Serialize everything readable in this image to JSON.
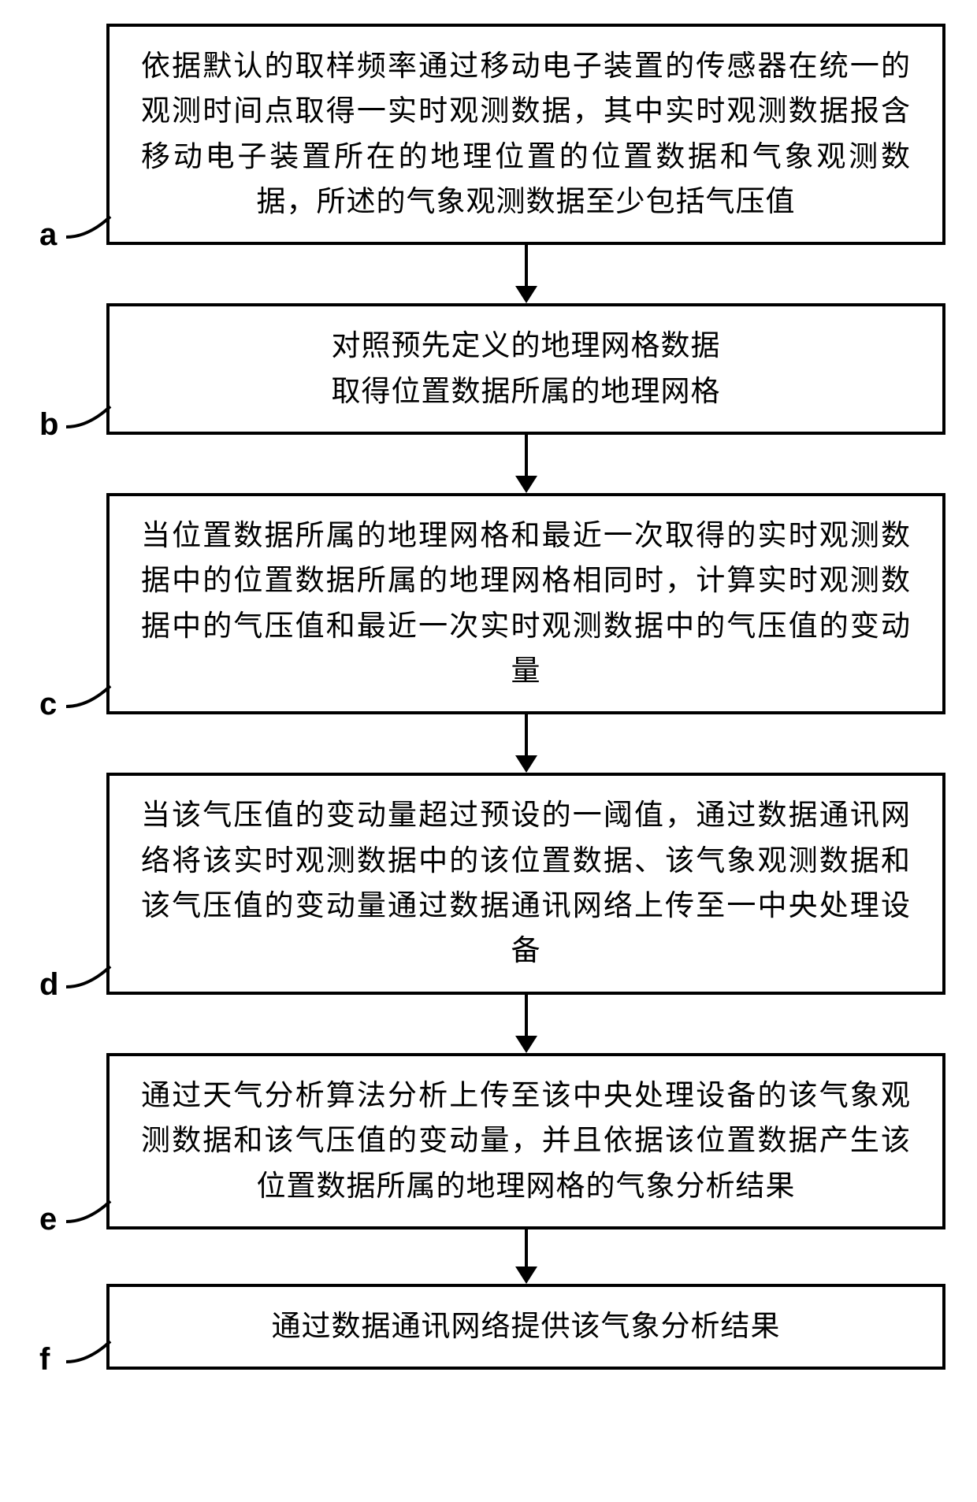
{
  "flowchart": {
    "type": "flowchart",
    "background_color": "#ffffff",
    "border_color": "#000000",
    "border_width": 4,
    "text_color": "#000000",
    "font_size": 37,
    "label_font_size": 40,
    "arrow_color": "#000000",
    "steps": [
      {
        "id": "a",
        "text": "依据默认的取样频率通过移动电子装置的传感器在统一的观测时间点取得一实时观测数据，其中实时观测数据报含移动电子装置所在的地理位置的位置数据和气象观测数据，所述的气象观测数据至少包括气压值",
        "arrow_height": 75,
        "narrow": false
      },
      {
        "id": "b",
        "text": "对照预先定义的地理网格数据\n取得位置数据所属的地理网格",
        "arrow_height": 75,
        "narrow": true
      },
      {
        "id": "c",
        "text": "当位置数据所属的地理网格和最近一次取得的实时观测数据中的位置数据所属的地理网格相同时，计算实时观测数据中的气压值和最近一次实时观测数据中的气压值的变动量",
        "arrow_height": 75,
        "narrow": false
      },
      {
        "id": "d",
        "text": "当该气压值的变动量超过预设的一阈值，通过数据通讯网络将该实时观测数据中的该位置数据、该气象观测数据和该气压值的变动量通过数据通讯网络上传至一中央处理设备",
        "arrow_height": 75,
        "narrow": false
      },
      {
        "id": "e",
        "text": "通过天气分析算法分析上传至该中央处理设备的该气象观测数据和该气压值的变动量，并且依据该位置数据产生该位置数据所属的地理网格的气象分析结果",
        "arrow_height": 70,
        "narrow": false
      },
      {
        "id": "f",
        "text": "通过数据通讯网络提供该气象分析结果",
        "arrow_height": 0,
        "narrow": false
      }
    ]
  }
}
